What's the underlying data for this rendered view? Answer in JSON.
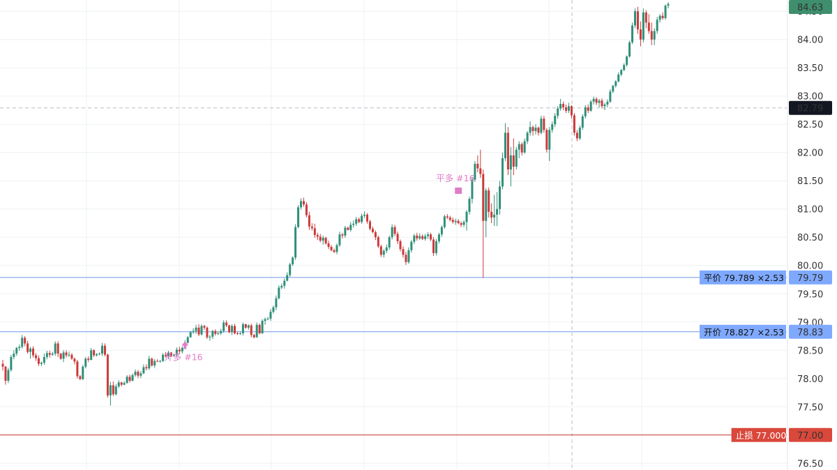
{
  "chart_data": {
    "type": "candlestick",
    "y_axis": {
      "ticks": [
        "84.50",
        "84.00",
        "83.50",
        "83.00",
        "82.50",
        "82.00",
        "81.50",
        "81.00",
        "80.50",
        "80.00",
        "79.50",
        "79.00",
        "78.50",
        "78.00",
        "77.50",
        "77.00",
        "76.50"
      ],
      "ylim": [
        76.38,
        84.7
      ],
      "side": "right"
    },
    "grid": true,
    "last_price": {
      "value": 84.63,
      "label": "84.63",
      "color": "#3f8f6e"
    },
    "crosshair": {
      "value": 82.79,
      "label": "82.79",
      "color": "#131722"
    },
    "order_lines": [
      {
        "name": "close-long-line",
        "price": 79.789,
        "text": "平价 79.789 ×2.53",
        "axis_label": "79.79",
        "color": "#7fa9ff",
        "line_color": "#6f97e8"
      },
      {
        "name": "open-long-line",
        "price": 78.827,
        "text": "开价 78.827 ×2.53",
        "axis_label": "78.83",
        "color": "#7fa9ff",
        "line_color": "#6f97e8"
      },
      {
        "name": "stop-loss-line",
        "price": 77.0,
        "text": "止损 77.000",
        "axis_label": "77.00",
        "color": "#d9483b",
        "line_color": "#c6352b"
      }
    ],
    "trade_markers": [
      {
        "name": "open-long-marker",
        "text": "开多 #16",
        "price": 78.62,
        "index": 66,
        "direction": "up"
      },
      {
        "name": "close-long-marker",
        "text": "平多 #16",
        "price": 81.33,
        "index": 164,
        "direction": "down"
      }
    ],
    "colors": {
      "up": "#2f8f77",
      "down": "#cc3a3a"
    },
    "candles": [
      [
        78.26,
        78.33,
        78.14,
        78.21
      ],
      [
        78.21,
        78.22,
        77.89,
        77.96
      ],
      [
        77.96,
        78.19,
        77.92,
        78.15
      ],
      [
        78.15,
        78.42,
        78.12,
        78.38
      ],
      [
        78.38,
        78.5,
        78.34,
        78.44
      ],
      [
        78.44,
        78.56,
        78.4,
        78.54
      ],
      [
        78.54,
        78.6,
        78.49,
        78.56
      ],
      [
        78.56,
        78.77,
        78.53,
        78.72
      ],
      [
        78.72,
        78.75,
        78.57,
        78.62
      ],
      [
        78.62,
        78.67,
        78.44,
        78.47
      ],
      [
        78.47,
        78.56,
        78.35,
        78.53
      ],
      [
        78.53,
        78.57,
        78.37,
        78.41
      ],
      [
        78.41,
        78.45,
        78.31,
        78.36
      ],
      [
        78.36,
        78.41,
        78.22,
        78.26
      ],
      [
        78.26,
        78.3,
        78.22,
        78.28
      ],
      [
        78.28,
        78.44,
        78.24,
        78.38
      ],
      [
        78.38,
        78.49,
        78.34,
        78.45
      ],
      [
        78.45,
        78.49,
        78.37,
        78.42
      ],
      [
        78.42,
        78.47,
        78.4,
        78.44
      ],
      [
        78.44,
        78.66,
        78.4,
        78.62
      ],
      [
        78.62,
        78.66,
        78.38,
        78.44
      ],
      [
        78.44,
        78.45,
        78.33,
        78.35
      ],
      [
        78.35,
        78.5,
        78.29,
        78.46
      ],
      [
        78.46,
        78.5,
        78.37,
        78.41
      ],
      [
        78.41,
        78.48,
        78.38,
        78.42
      ],
      [
        78.42,
        78.45,
        78.33,
        78.35
      ],
      [
        78.35,
        78.37,
        78.25,
        78.3
      ],
      [
        78.3,
        78.33,
        78.0,
        78.04
      ],
      [
        78.04,
        78.06,
        77.97,
        77.99
      ],
      [
        77.99,
        78.24,
        77.97,
        78.21
      ],
      [
        78.21,
        78.38,
        78.18,
        78.35
      ],
      [
        78.35,
        78.39,
        78.29,
        78.33
      ],
      [
        78.33,
        78.54,
        78.32,
        78.5
      ],
      [
        78.5,
        78.52,
        78.38,
        78.41
      ],
      [
        78.41,
        78.45,
        78.39,
        78.43
      ],
      [
        78.43,
        78.46,
        78.41,
        78.44
      ],
      [
        78.44,
        78.63,
        78.4,
        78.58
      ],
      [
        78.58,
        78.62,
        78.39,
        78.42
      ],
      [
        78.42,
        78.44,
        77.66,
        77.7
      ],
      [
        77.7,
        77.94,
        77.52,
        77.88
      ],
      [
        77.88,
        77.95,
        77.69,
        77.72
      ],
      [
        77.72,
        77.9,
        77.7,
        77.86
      ],
      [
        77.86,
        77.97,
        77.83,
        77.93
      ],
      [
        77.93,
        77.94,
        77.86,
        77.89
      ],
      [
        77.89,
        77.95,
        77.88,
        77.92
      ],
      [
        77.92,
        78.06,
        77.91,
        78.03
      ],
      [
        78.03,
        78.07,
        77.93,
        77.96
      ],
      [
        77.96,
        78.09,
        77.95,
        78.06
      ],
      [
        78.06,
        78.16,
        78.03,
        78.12
      ],
      [
        78.12,
        78.15,
        78.01,
        78.05
      ],
      [
        78.05,
        78.13,
        78.01,
        78.09
      ],
      [
        78.09,
        78.25,
        78.08,
        78.2
      ],
      [
        78.2,
        78.25,
        78.14,
        78.18
      ],
      [
        78.18,
        78.4,
        78.15,
        78.35
      ],
      [
        78.35,
        78.37,
        78.21,
        78.23
      ],
      [
        78.23,
        78.34,
        78.19,
        78.31
      ],
      [
        78.31,
        78.34,
        78.29,
        78.3
      ],
      [
        78.3,
        78.33,
        78.28,
        78.31
      ],
      [
        78.31,
        78.45,
        78.29,
        78.42
      ],
      [
        78.42,
        78.47,
        78.37,
        78.4
      ],
      [
        78.4,
        78.49,
        78.34,
        78.46
      ],
      [
        78.46,
        78.47,
        78.39,
        78.4
      ],
      [
        78.4,
        78.44,
        78.39,
        78.42
      ],
      [
        78.42,
        78.55,
        78.38,
        78.51
      ],
      [
        78.51,
        78.56,
        78.43,
        78.48
      ],
      [
        78.48,
        78.57,
        78.44,
        78.54
      ],
      [
        78.54,
        78.68,
        78.52,
        78.63
      ],
      [
        78.63,
        78.75,
        78.62,
        78.73
      ],
      [
        78.73,
        78.84,
        78.72,
        78.82
      ],
      [
        78.82,
        78.89,
        78.79,
        78.84
      ],
      [
        78.84,
        78.95,
        78.79,
        78.9
      ],
      [
        78.9,
        78.96,
        78.75,
        78.78
      ],
      [
        78.78,
        78.96,
        78.76,
        78.93
      ],
      [
        78.93,
        78.95,
        78.86,
        78.9
      ],
      [
        78.9,
        78.92,
        78.7,
        78.73
      ],
      [
        78.73,
        78.77,
        78.67,
        78.74
      ],
      [
        78.74,
        78.86,
        78.7,
        78.84
      ],
      [
        78.84,
        78.87,
        78.76,
        78.79
      ],
      [
        78.79,
        78.83,
        78.77,
        78.8
      ],
      [
        78.8,
        78.88,
        78.77,
        78.84
      ],
      [
        78.84,
        79.03,
        78.81,
        78.99
      ],
      [
        78.99,
        79.03,
        78.91,
        78.94
      ],
      [
        78.94,
        78.95,
        78.8,
        78.82
      ],
      [
        78.82,
        78.96,
        78.77,
        78.93
      ],
      [
        78.93,
        78.97,
        78.78,
        78.8
      ],
      [
        78.8,
        78.83,
        78.77,
        78.79
      ],
      [
        78.79,
        78.83,
        78.77,
        78.8
      ],
      [
        78.8,
        78.99,
        78.76,
        78.96
      ],
      [
        78.96,
        78.97,
        78.88,
        78.9
      ],
      [
        78.9,
        78.96,
        78.86,
        78.94
      ],
      [
        78.94,
        78.97,
        78.73,
        78.77
      ],
      [
        78.77,
        78.79,
        78.71,
        78.73
      ],
      [
        78.73,
        78.99,
        78.72,
        78.95
      ],
      [
        78.95,
        78.97,
        78.78,
        78.8
      ],
      [
        78.8,
        79.05,
        78.79,
        79.02
      ],
      [
        79.02,
        79.08,
        78.95,
        79.05
      ],
      [
        79.05,
        79.09,
        79.03,
        79.06
      ],
      [
        79.06,
        79.23,
        79.02,
        79.18
      ],
      [
        79.18,
        79.29,
        79.15,
        79.26
      ],
      [
        79.26,
        79.47,
        79.21,
        79.42
      ],
      [
        79.42,
        79.65,
        79.4,
        79.61
      ],
      [
        79.61,
        79.68,
        79.58,
        79.64
      ],
      [
        79.64,
        79.77,
        79.59,
        79.73
      ],
      [
        79.73,
        79.88,
        79.72,
        79.83
      ],
      [
        79.83,
        80.05,
        79.8,
        80.02
      ],
      [
        80.02,
        80.16,
        79.99,
        80.14
      ],
      [
        80.14,
        80.73,
        80.1,
        80.68
      ],
      [
        80.68,
        81.07,
        80.66,
        81.03
      ],
      [
        81.03,
        81.19,
        80.99,
        81.14
      ],
      [
        81.14,
        81.2,
        81.04,
        81.08
      ],
      [
        81.08,
        81.12,
        80.85,
        80.89
      ],
      [
        80.89,
        80.95,
        80.63,
        80.69
      ],
      [
        80.69,
        80.75,
        80.62,
        80.66
      ],
      [
        80.66,
        80.74,
        80.49,
        80.54
      ],
      [
        80.54,
        80.58,
        80.45,
        80.51
      ],
      [
        80.51,
        80.56,
        80.41,
        80.44
      ],
      [
        80.44,
        80.53,
        80.37,
        80.49
      ],
      [
        80.49,
        80.51,
        80.37,
        80.39
      ],
      [
        80.39,
        80.44,
        80.29,
        80.33
      ],
      [
        80.33,
        80.36,
        80.25,
        80.27
      ],
      [
        80.27,
        80.3,
        80.22,
        80.24
      ],
      [
        80.24,
        80.39,
        80.2,
        80.36
      ],
      [
        80.36,
        80.6,
        80.33,
        80.55
      ],
      [
        80.55,
        80.58,
        80.48,
        80.53
      ],
      [
        80.53,
        80.7,
        80.49,
        80.67
      ],
      [
        80.67,
        80.69,
        80.62,
        80.63
      ],
      [
        80.63,
        80.77,
        80.6,
        80.72
      ],
      [
        80.72,
        80.8,
        80.67,
        80.74
      ],
      [
        80.74,
        80.86,
        80.7,
        80.82
      ],
      [
        80.82,
        80.85,
        80.75,
        80.77
      ],
      [
        80.77,
        80.92,
        80.74,
        80.88
      ],
      [
        80.88,
        80.96,
        80.84,
        80.9
      ],
      [
        80.9,
        80.93,
        80.74,
        80.78
      ],
      [
        80.78,
        80.81,
        80.62,
        80.65
      ],
      [
        80.65,
        80.69,
        80.57,
        80.59
      ],
      [
        80.59,
        80.62,
        80.45,
        80.5
      ],
      [
        80.5,
        80.53,
        80.31,
        80.34
      ],
      [
        80.34,
        80.37,
        80.15,
        80.19
      ],
      [
        80.19,
        80.29,
        80.14,
        80.26
      ],
      [
        80.26,
        80.37,
        80.22,
        80.32
      ],
      [
        80.32,
        80.53,
        80.28,
        80.5
      ],
      [
        80.5,
        80.73,
        80.46,
        80.68
      ],
      [
        80.68,
        80.72,
        80.52,
        80.56
      ],
      [
        80.56,
        80.6,
        80.38,
        80.43
      ],
      [
        80.43,
        80.46,
        80.25,
        80.29
      ],
      [
        80.29,
        80.34,
        80.14,
        80.19
      ],
      [
        80.19,
        80.24,
        80.01,
        80.06
      ],
      [
        80.06,
        80.32,
        80.03,
        80.27
      ],
      [
        80.27,
        80.45,
        80.23,
        80.42
      ],
      [
        80.42,
        80.56,
        80.38,
        80.53
      ],
      [
        80.53,
        80.58,
        80.44,
        80.48
      ],
      [
        80.48,
        80.57,
        80.45,
        80.52
      ],
      [
        80.52,
        80.55,
        80.45,
        80.47
      ],
      [
        80.47,
        80.56,
        80.44,
        80.52
      ],
      [
        80.52,
        80.59,
        80.47,
        80.55
      ],
      [
        80.55,
        80.58,
        80.43,
        80.46
      ],
      [
        80.46,
        80.5,
        80.17,
        80.22
      ],
      [
        80.22,
        80.47,
        80.18,
        80.43
      ],
      [
        80.43,
        80.58,
        80.39,
        80.55
      ],
      [
        80.55,
        80.71,
        80.51,
        80.68
      ],
      [
        80.68,
        80.9,
        80.65,
        80.87
      ],
      [
        80.87,
        80.91,
        80.82,
        80.85
      ],
      [
        80.85,
        80.88,
        80.78,
        80.81
      ],
      [
        80.81,
        80.85,
        80.74,
        80.77
      ],
      [
        80.77,
        80.83,
        80.72,
        80.79
      ],
      [
        80.79,
        80.82,
        80.73,
        80.75
      ],
      [
        80.75,
        80.78,
        80.68,
        80.72
      ],
      [
        80.72,
        80.8,
        80.68,
        80.77
      ],
      [
        80.77,
        80.98,
        80.62,
        80.95
      ],
      [
        80.95,
        81.22,
        80.9,
        81.18
      ],
      [
        81.18,
        81.57,
        81.1,
        81.52
      ],
      [
        81.52,
        81.85,
        81.48,
        81.8
      ],
      [
        81.8,
        81.95,
        81.65,
        81.72
      ],
      [
        81.72,
        82.05,
        81.55,
        81.62
      ],
      [
        81.62,
        81.7,
        79.78,
        80.79
      ],
      [
        80.79,
        81.37,
        80.5,
        81.33
      ],
      [
        81.33,
        81.38,
        80.85,
        80.95
      ],
      [
        80.95,
        81.1,
        80.75,
        80.85
      ],
      [
        80.85,
        81.25,
        80.7,
        80.9
      ],
      [
        80.9,
        81.3,
        80.7,
        81.0
      ],
      [
        81.0,
        81.5,
        80.9,
        81.4
      ],
      [
        81.4,
        82.0,
        81.35,
        81.9
      ],
      [
        81.9,
        82.52,
        81.85,
        82.35
      ],
      [
        82.35,
        82.45,
        81.6,
        81.7
      ],
      [
        81.7,
        82.1,
        81.4,
        81.95
      ],
      [
        81.95,
        82.25,
        81.6,
        81.75
      ],
      [
        81.75,
        82.1,
        81.7,
        82.05
      ],
      [
        82.05,
        82.2,
        81.9,
        82.15
      ],
      [
        82.15,
        82.18,
        81.95,
        82.0
      ],
      [
        82.0,
        82.25,
        81.98,
        82.2
      ],
      [
        82.2,
        82.38,
        82.15,
        82.35
      ],
      [
        82.35,
        82.55,
        82.3,
        82.45
      ],
      [
        82.45,
        82.48,
        82.3,
        82.38
      ],
      [
        82.38,
        82.5,
        82.32,
        82.44
      ],
      [
        82.44,
        82.46,
        82.3,
        82.35
      ],
      [
        82.35,
        82.65,
        82.32,
        82.6
      ],
      [
        82.6,
        82.65,
        82.35,
        82.4
      ],
      [
        82.4,
        82.43,
        82.0,
        82.05
      ],
      [
        82.05,
        82.45,
        81.85,
        82.4
      ],
      [
        82.4,
        82.55,
        82.35,
        82.5
      ],
      [
        82.5,
        82.7,
        82.45,
        82.65
      ],
      [
        82.65,
        82.82,
        82.6,
        82.78
      ],
      [
        82.78,
        82.95,
        82.74,
        82.86
      ],
      [
        82.86,
        82.9,
        82.75,
        82.8
      ],
      [
        82.8,
        82.85,
        82.7,
        82.74
      ],
      [
        82.74,
        82.88,
        82.7,
        82.82
      ],
      [
        82.82,
        82.84,
        82.6,
        82.66
      ],
      [
        82.66,
        82.7,
        82.3,
        82.35
      ],
      [
        82.35,
        82.4,
        82.2,
        82.25
      ],
      [
        82.25,
        82.48,
        82.22,
        82.44
      ],
      [
        82.44,
        82.68,
        82.4,
        82.64
      ],
      [
        82.64,
        82.84,
        82.6,
        82.8
      ],
      [
        82.8,
        82.85,
        82.7,
        82.74
      ],
      [
        82.74,
        82.93,
        82.72,
        82.9
      ],
      [
        82.9,
        82.99,
        82.85,
        82.95
      ],
      [
        82.95,
        82.98,
        82.84,
        82.88
      ],
      [
        82.88,
        82.95,
        82.8,
        82.92
      ],
      [
        82.92,
        82.96,
        82.78,
        82.82
      ],
      [
        82.82,
        82.88,
        82.75,
        82.85
      ],
      [
        82.85,
        82.94,
        82.8,
        82.9
      ],
      [
        82.9,
        83.12,
        82.88,
        83.08
      ],
      [
        83.08,
        83.2,
        83.05,
        83.18
      ],
      [
        83.18,
        83.28,
        83.15,
        83.26
      ],
      [
        83.26,
        83.42,
        83.24,
        83.38
      ],
      [
        83.38,
        83.48,
        83.35,
        83.46
      ],
      [
        83.46,
        83.58,
        83.44,
        83.55
      ],
      [
        83.55,
        83.72,
        83.52,
        83.7
      ],
      [
        83.7,
        83.98,
        83.68,
        83.95
      ],
      [
        83.95,
        84.3,
        83.92,
        84.25
      ],
      [
        84.25,
        84.55,
        84.2,
        84.5
      ],
      [
        84.5,
        84.58,
        84.1,
        84.18
      ],
      [
        84.18,
        84.32,
        83.88,
        84.0
      ],
      [
        84.0,
        84.55,
        83.95,
        84.48
      ],
      [
        84.48,
        84.52,
        84.2,
        84.3
      ],
      [
        84.3,
        84.45,
        84.1,
        84.15
      ],
      [
        84.15,
        84.3,
        83.9,
        84.0
      ],
      [
        84.0,
        84.2,
        83.9,
        84.15
      ],
      [
        84.15,
        84.4,
        84.1,
        84.35
      ],
      [
        84.35,
        84.45,
        84.3,
        84.42
      ],
      [
        84.42,
        84.48,
        84.35,
        84.38
      ],
      [
        84.38,
        84.62,
        84.35,
        84.6
      ],
      [
        84.6,
        84.66,
        84.55,
        84.63
      ]
    ]
  }
}
